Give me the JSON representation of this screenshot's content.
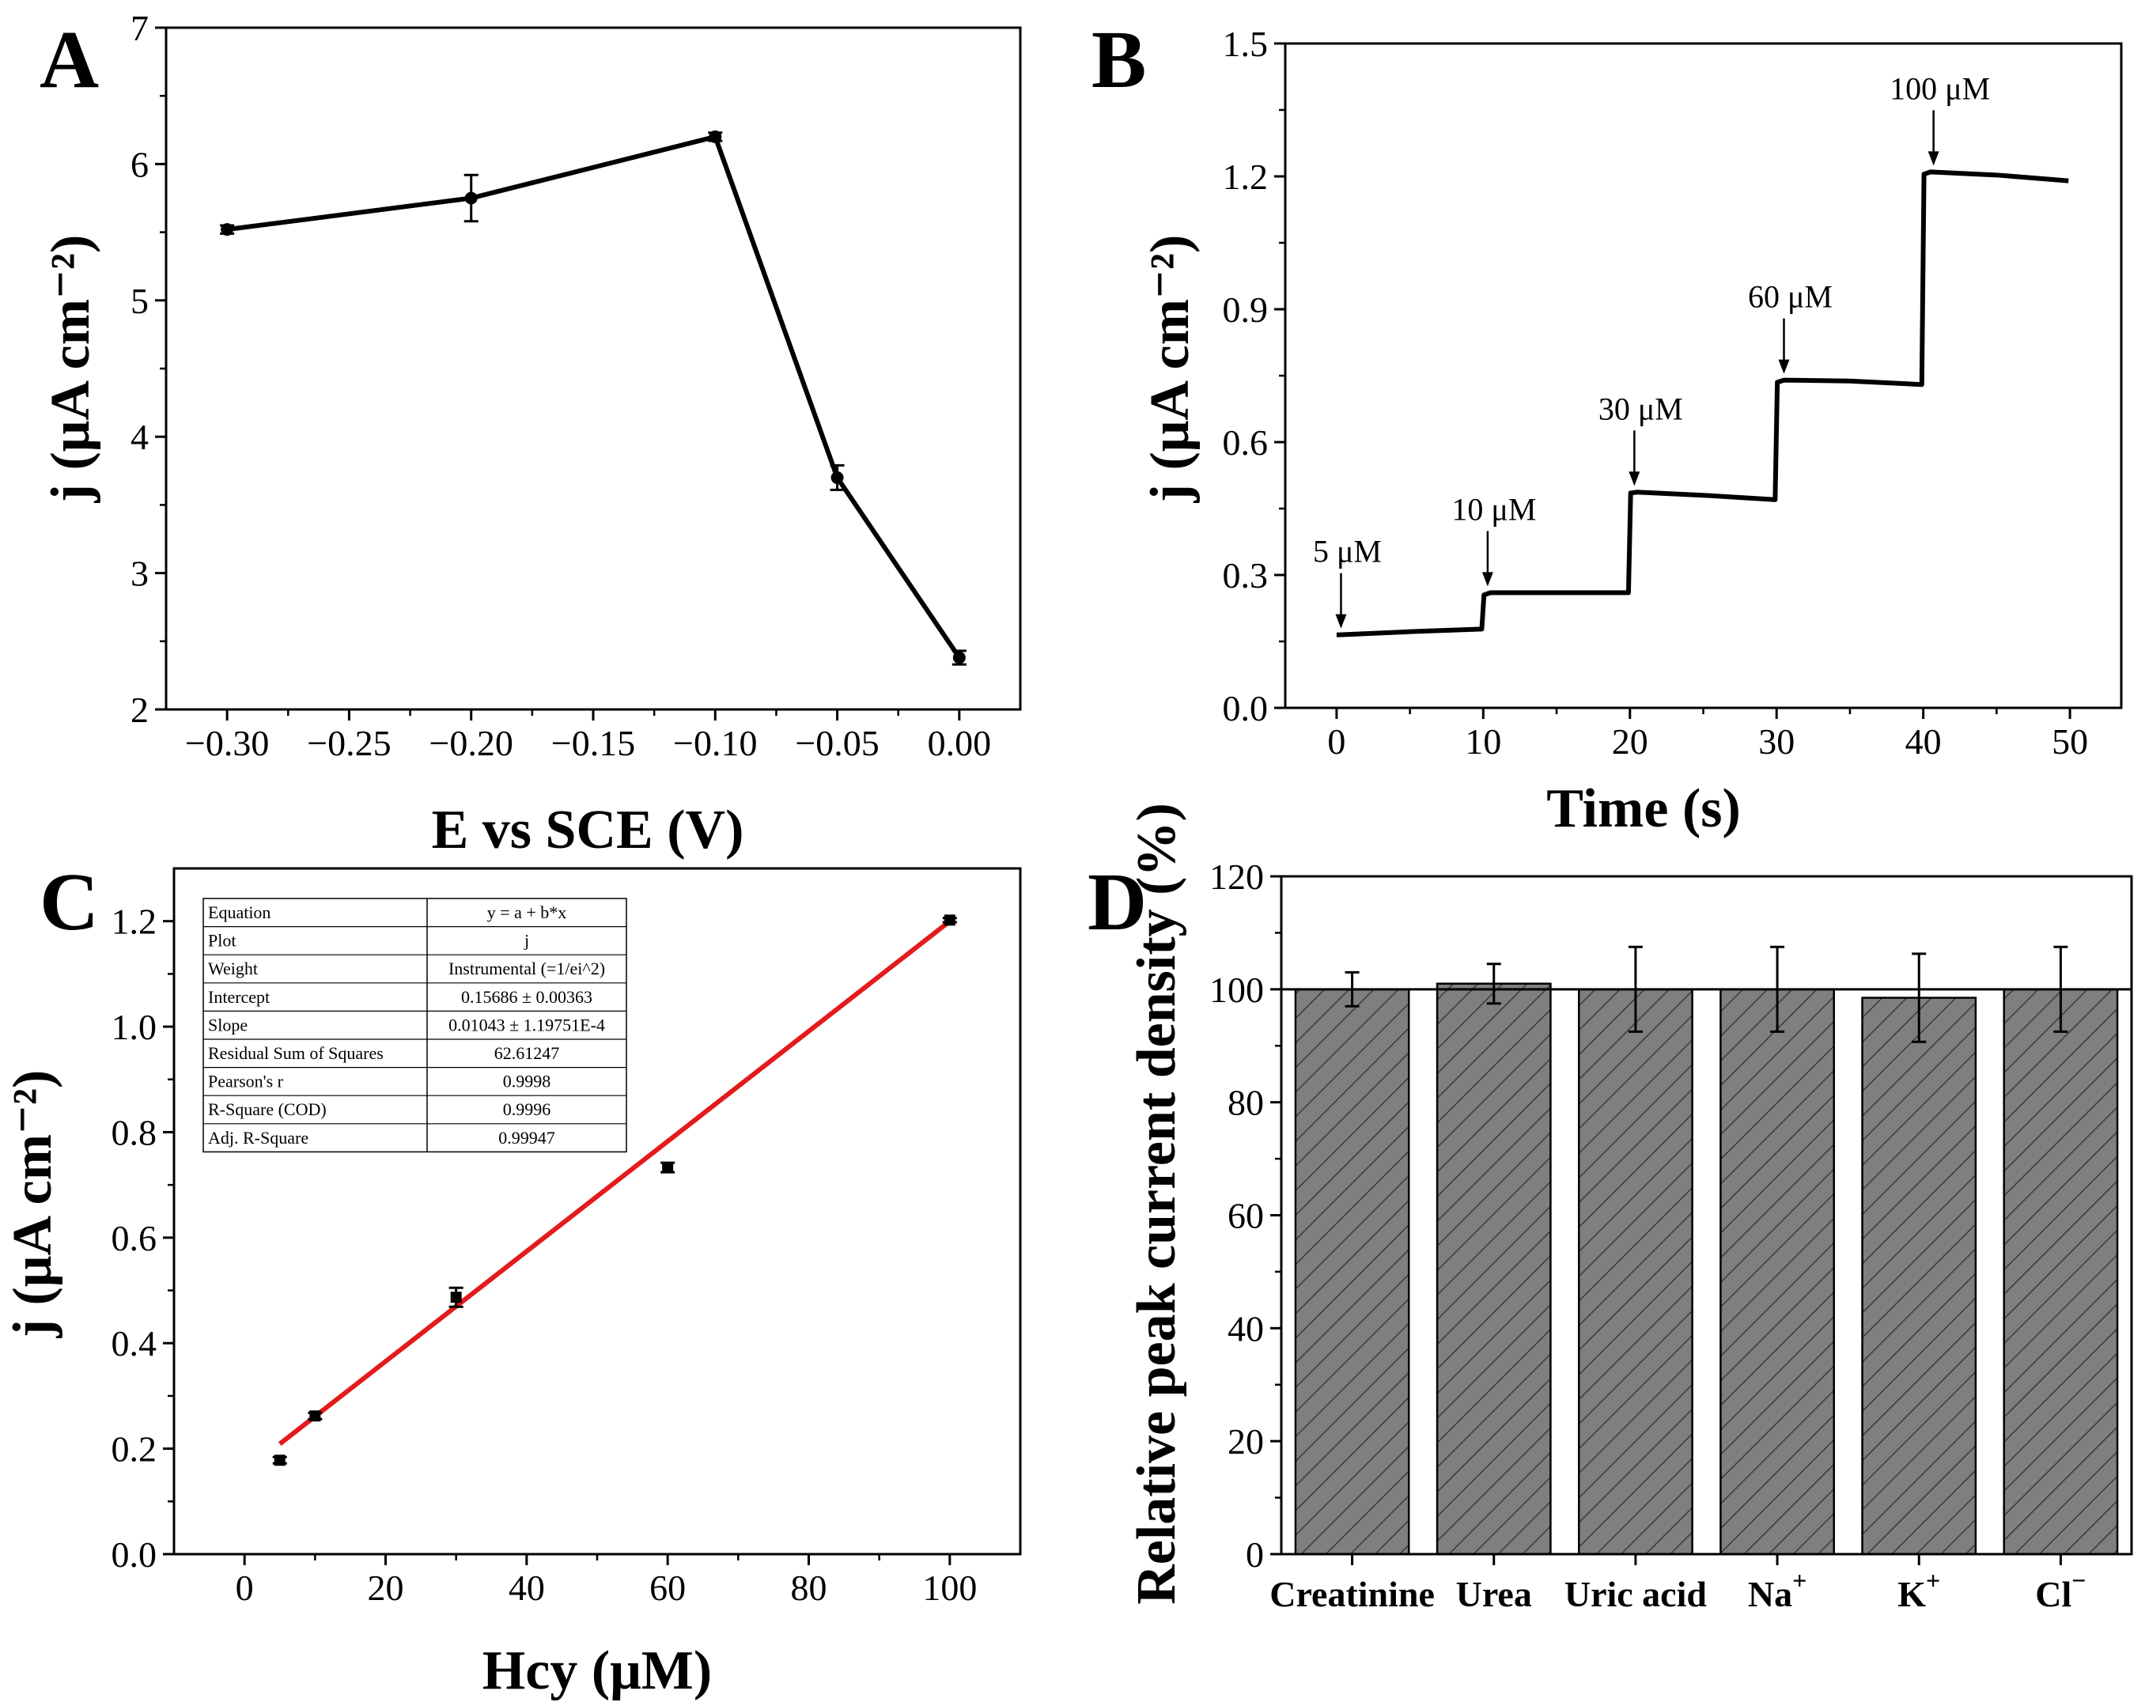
{
  "colors": {
    "axis": "#000000",
    "fit": "#e41a1c",
    "bar_fill": "#7f7f7f",
    "bar_hatch": "#3a3a3a"
  },
  "chart_data": [
    {
      "panel": "A",
      "type": "line",
      "xlabel": "E vs SCE (V)",
      "ylabel": "j (μA cm⁻²)",
      "xlim": [
        -0.325,
        0.025
      ],
      "ylim": [
        2,
        7
      ],
      "xticks": [
        "−0.30",
        "−0.25",
        "−0.20",
        "−0.15",
        "−0.10",
        "−0.05",
        "0.00"
      ],
      "xtick_values": [
        -0.3,
        -0.25,
        -0.2,
        -0.15,
        -0.1,
        -0.05,
        0.0
      ],
      "yticks": [
        "2",
        "3",
        "4",
        "5",
        "6",
        "7"
      ],
      "ytick_values": [
        2,
        3,
        4,
        5,
        6,
        7
      ],
      "x": [
        -0.3,
        -0.2,
        -0.1,
        -0.05,
        0.0
      ],
      "y": [
        5.52,
        5.75,
        6.2,
        3.7,
        2.38
      ],
      "err": [
        0.03,
        0.17,
        0.03,
        0.09,
        0.05
      ]
    },
    {
      "panel": "B",
      "type": "line",
      "xlabel": "Time (s)",
      "ylabel": "j (μA cm⁻²)",
      "xlim": [
        -3.5,
        53.5
      ],
      "ylim": [
        0,
        1.5
      ],
      "xticks": [
        "0",
        "10",
        "20",
        "30",
        "40",
        "50"
      ],
      "xtick_values": [
        0,
        10,
        20,
        30,
        40,
        50
      ],
      "yticks": [
        "0.0",
        "0.3",
        "0.6",
        "0.9",
        "1.2",
        "1.5"
      ],
      "ytick_values": [
        0,
        0.3,
        0.6,
        0.9,
        1.2,
        1.5
      ],
      "x": [
        0,
        0.2,
        5,
        9.9,
        10.05,
        10.5,
        15,
        19.9,
        20.05,
        20.5,
        25,
        29.9,
        30.05,
        30.5,
        35,
        39.9,
        40.05,
        40.5,
        45,
        49.9
      ],
      "y": [
        0.165,
        0.165,
        0.172,
        0.178,
        0.255,
        0.26,
        0.26,
        0.26,
        0.485,
        0.487,
        0.48,
        0.47,
        0.735,
        0.74,
        0.738,
        0.73,
        1.205,
        1.21,
        1.203,
        1.19
      ],
      "annotations": [
        {
          "label": "5 μM",
          "x": 0.3,
          "y": 0.165
        },
        {
          "label": "10 μM",
          "x": 10.3,
          "y": 0.26
        },
        {
          "label": "30 μM",
          "x": 20.3,
          "y": 0.487
        },
        {
          "label": "60 μM",
          "x": 30.5,
          "y": 0.74
        },
        {
          "label": "100 μM",
          "x": 40.7,
          "y": 1.21
        }
      ]
    },
    {
      "panel": "C",
      "type": "scatter",
      "xlabel": "Hcy (μM)",
      "ylabel": "j (μA cm⁻²)",
      "xlim": [
        -10,
        110
      ],
      "ylim": [
        0,
        1.3
      ],
      "xticks": [
        "0",
        "20",
        "40",
        "60",
        "80",
        "100"
      ],
      "xtick_values": [
        0,
        20,
        40,
        60,
        80,
        100
      ],
      "yticks": [
        "0.0",
        "0.2",
        "0.4",
        "0.6",
        "0.8",
        "1.0",
        "1.2"
      ],
      "ytick_values": [
        0,
        0.2,
        0.4,
        0.6,
        0.8,
        1.0,
        1.2
      ],
      "x": [
        5,
        10,
        30,
        60,
        100
      ],
      "y": [
        0.178,
        0.262,
        0.487,
        0.733,
        1.202
      ],
      "err": [
        0.006,
        0.006,
        0.018,
        0.009,
        0.004
      ],
      "fit": {
        "intercept": 0.15686,
        "slope": 0.01043,
        "x_range": [
          5,
          100
        ]
      },
      "stats_table": [
        [
          "Equation",
          "y = a + b*x"
        ],
        [
          "Plot",
          "j"
        ],
        [
          "Weight",
          "Instrumental (=1/ei^2)"
        ],
        [
          "Intercept",
          "0.15686 ± 0.00363"
        ],
        [
          "Slope",
          "0.01043 ± 1.19751E-4"
        ],
        [
          "Residual Sum of Squares",
          "62.61247"
        ],
        [
          "Pearson's r",
          "0.9998"
        ],
        [
          "R-Square (COD)",
          "0.9996"
        ],
        [
          "Adj. R-Square",
          "0.99947"
        ]
      ]
    },
    {
      "panel": "D",
      "type": "bar",
      "ylabel": "Relative peak current density (%)",
      "ylim": [
        0,
        120
      ],
      "yticks": [
        "0",
        "20",
        "40",
        "60",
        "80",
        "100",
        "120"
      ],
      "ytick_values": [
        0,
        20,
        40,
        60,
        80,
        100,
        120
      ],
      "categories": [
        "Creatinine",
        "Urea",
        "Uric acid",
        "Na",
        "K",
        "Cl"
      ],
      "category_superscripts": [
        "",
        "",
        "",
        "+",
        "+",
        "−"
      ],
      "values": [
        100,
        101,
        100,
        100,
        98.5,
        100
      ],
      "err": [
        3,
        3.5,
        7.5,
        7.5,
        7.8,
        7.5
      ],
      "reference_line": 100
    }
  ]
}
